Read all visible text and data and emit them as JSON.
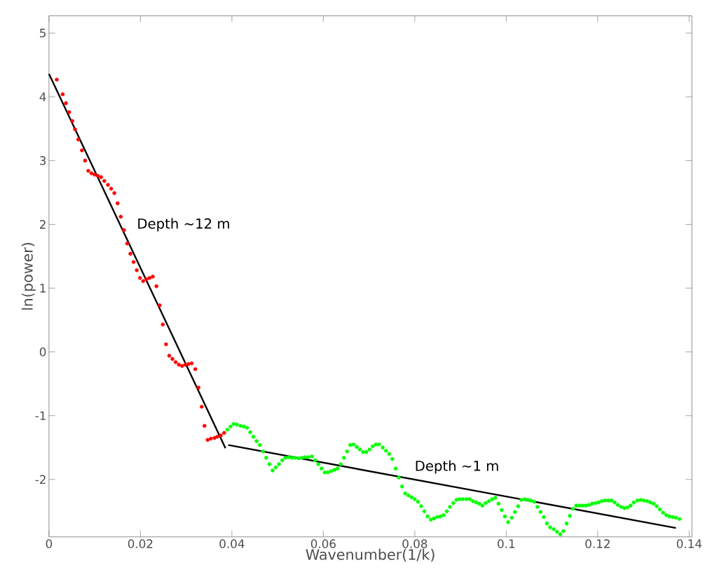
{
  "chart_data": {
    "type": "scatter",
    "xlabel": "Wavenumber(1/k)",
    "ylabel": "ln(power)",
    "xlim": [
      0,
      0.1406
    ],
    "ylim": [
      -2.9,
      5.27
    ],
    "xticks": [
      0,
      0.02,
      0.04,
      0.06,
      0.08,
      0.1,
      0.12,
      0.14
    ],
    "yticks": [
      -2,
      -1,
      0,
      1,
      2,
      3,
      4,
      5
    ],
    "annotations": [
      "Depth ~12 m",
      "Depth ~1 m"
    ],
    "series": [
      {
        "marker": "circle",
        "color": "#ff0000",
        "x": [
          0.0017,
          0.003,
          0.0037,
          0.0044,
          0.0051,
          0.0057,
          0.0064,
          0.0072,
          0.0079,
          0.0086,
          0.0093,
          0.01,
          0.0107,
          0.0114,
          0.0121,
          0.0129,
          0.0136,
          0.0143,
          0.015,
          0.0157,
          0.0164,
          0.0171,
          0.0178,
          0.0185,
          0.0192,
          0.0199,
          0.0206,
          0.0213,
          0.022,
          0.0227,
          0.0235,
          0.0242,
          0.0249,
          0.0256,
          0.0263,
          0.027,
          0.0277,
          0.0284,
          0.0291,
          0.0298,
          0.0305,
          0.0312,
          0.032,
          0.0327,
          0.0334,
          0.034,
          0.0347,
          0.0354,
          0.0362,
          0.0368,
          0.0376,
          0.0383
        ],
        "values": [
          4.27,
          4.04,
          3.9,
          3.76,
          3.62,
          3.49,
          3.33,
          3.16,
          3.0,
          2.84,
          2.8,
          2.78,
          2.76,
          2.74,
          2.68,
          2.62,
          2.56,
          2.49,
          2.33,
          2.12,
          1.91,
          1.7,
          1.54,
          1.41,
          1.28,
          1.16,
          1.11,
          1.14,
          1.16,
          1.18,
          1.03,
          0.73,
          0.43,
          0.12,
          -0.06,
          -0.11,
          -0.16,
          -0.2,
          -0.22,
          -0.2,
          -0.19,
          -0.18,
          -0.27,
          -0.56,
          -0.86,
          -1.16,
          -1.38,
          -1.36,
          -1.35,
          -1.33,
          -1.31,
          -1.27
        ]
      },
      {
        "marker": "circle",
        "color": "#00ff00",
        "x": [
          0.039,
          0.0397,
          0.0404,
          0.0411,
          0.0419,
          0.0426,
          0.0433,
          0.044,
          0.0447,
          0.0454,
          0.0461,
          0.0468,
          0.0475,
          0.0482,
          0.0489,
          0.0496,
          0.0503,
          0.051,
          0.0517,
          0.0524,
          0.0531,
          0.0538,
          0.0546,
          0.0553,
          0.056,
          0.0567,
          0.0575,
          0.0582,
          0.0589,
          0.0596,
          0.0603,
          0.061,
          0.0617,
          0.0624,
          0.0631,
          0.0638,
          0.0645,
          0.0652,
          0.0659,
          0.0666,
          0.0673,
          0.068,
          0.0687,
          0.0694,
          0.0701,
          0.0708,
          0.0715,
          0.0722,
          0.073,
          0.0737,
          0.0744,
          0.0751,
          0.0758,
          0.0765,
          0.0772,
          0.0779,
          0.0786,
          0.0793,
          0.08,
          0.0807,
          0.0814,
          0.0821,
          0.0828,
          0.0835,
          0.0842,
          0.0849,
          0.0856,
          0.0863,
          0.087,
          0.0877,
          0.0884,
          0.0891,
          0.0898,
          0.0905,
          0.0913,
          0.092,
          0.0927,
          0.0934,
          0.0941,
          0.0948,
          0.0955,
          0.0962,
          0.0969,
          0.0976,
          0.0983,
          0.099,
          0.0997,
          0.1004,
          0.1012,
          0.1019,
          0.1026,
          0.1033,
          0.104,
          0.1047,
          0.1054,
          0.1061,
          0.1068,
          0.1075,
          0.1082,
          0.1089,
          0.1096,
          0.1104,
          0.1111,
          0.1118,
          0.1125,
          0.1132,
          0.1139,
          0.1146,
          0.1153,
          0.116,
          0.1167,
          0.1174,
          0.1181,
          0.1188,
          0.1195,
          0.1202,
          0.1209,
          0.1216,
          0.1223,
          0.123,
          0.1237,
          0.1244,
          0.1251,
          0.1258,
          0.1265,
          0.1272,
          0.1279,
          0.1287,
          0.1294,
          0.1301,
          0.1308,
          0.1315,
          0.1322,
          0.1329,
          0.1336,
          0.1343,
          0.135,
          0.1357,
          0.1364,
          0.1371,
          0.1379
        ],
        "values": [
          -1.22,
          -1.17,
          -1.13,
          -1.14,
          -1.16,
          -1.17,
          -1.19,
          -1.26,
          -1.33,
          -1.4,
          -1.46,
          -1.56,
          -1.66,
          -1.76,
          -1.86,
          -1.81,
          -1.76,
          -1.7,
          -1.66,
          -1.65,
          -1.66,
          -1.66,
          -1.67,
          -1.66,
          -1.65,
          -1.65,
          -1.64,
          -1.7,
          -1.76,
          -1.83,
          -1.89,
          -1.89,
          -1.87,
          -1.85,
          -1.83,
          -1.76,
          -1.66,
          -1.56,
          -1.46,
          -1.45,
          -1.49,
          -1.53,
          -1.57,
          -1.57,
          -1.53,
          -1.48,
          -1.45,
          -1.45,
          -1.5,
          -1.55,
          -1.6,
          -1.68,
          -1.83,
          -1.97,
          -2.11,
          -2.22,
          -2.25,
          -2.28,
          -2.31,
          -2.35,
          -2.42,
          -2.5,
          -2.58,
          -2.63,
          -2.61,
          -2.59,
          -2.58,
          -2.56,
          -2.5,
          -2.43,
          -2.37,
          -2.32,
          -2.31,
          -2.31,
          -2.31,
          -2.31,
          -2.34,
          -2.36,
          -2.38,
          -2.41,
          -2.37,
          -2.34,
          -2.31,
          -2.29,
          -2.38,
          -2.48,
          -2.58,
          -2.67,
          -2.6,
          -2.51,
          -2.42,
          -2.32,
          -2.31,
          -2.32,
          -2.33,
          -2.35,
          -2.43,
          -2.51,
          -2.59,
          -2.69,
          -2.75,
          -2.78,
          -2.82,
          -2.86,
          -2.81,
          -2.69,
          -2.57,
          -2.46,
          -2.41,
          -2.41,
          -2.41,
          -2.41,
          -2.4,
          -2.38,
          -2.37,
          -2.36,
          -2.34,
          -2.33,
          -2.33,
          -2.33,
          -2.36,
          -2.4,
          -2.43,
          -2.45,
          -2.44,
          -2.41,
          -2.36,
          -2.33,
          -2.32,
          -2.33,
          -2.34,
          -2.36,
          -2.38,
          -2.42,
          -2.47,
          -2.52,
          -2.56,
          -2.58,
          -2.59,
          -2.6,
          -2.62
        ]
      },
      {
        "type": "line",
        "marker": "none",
        "color": "#000000",
        "x": [
          0,
          0.0386
        ],
        "values": [
          4.36,
          -1.51
        ]
      },
      {
        "type": "line",
        "marker": "none",
        "color": "#000000",
        "x": [
          0.0392,
          0.1371
        ],
        "values": [
          -1.46,
          -2.76
        ]
      }
    ]
  }
}
